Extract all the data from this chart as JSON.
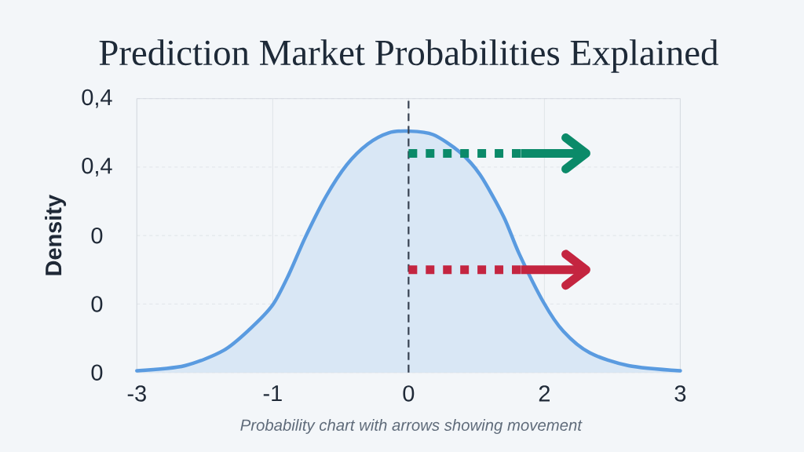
{
  "chart_data": {
    "type": "area",
    "title": "Prediction Market Probabilities Explained",
    "ylabel": "Density",
    "annotations": [
      "Probability chart with arrows showing movement"
    ],
    "xlim": [
      -3,
      3
    ],
    "xticks": [
      -3,
      {
        "value": -1.5,
        "label": "-1"
      },
      0,
      {
        "value": 1.5,
        "label": "2"
      },
      3
    ],
    "ylim": [
      0.12,
      0.44
    ],
    "yticks": [
      {
        "value": 0.12,
        "label": "0"
      },
      {
        "value": 0.2,
        "label": "0"
      },
      {
        "value": 0.28,
        "label": "0"
      },
      {
        "value": 0.36,
        "label": "0,4"
      },
      {
        "value": 0.44,
        "label": "0,4"
      }
    ],
    "grid": true,
    "series": [
      {
        "color": "#5a9be0",
        "x": [
          -3,
          -2.47,
          -2.04,
          -1.75,
          -1.5,
          -1.32,
          -1.14,
          -0.91,
          -0.68,
          -0.45,
          -0.22,
          0,
          0.27,
          0.56,
          0.79,
          1.05,
          1.22,
          1.49,
          1.71,
          2.0,
          2.43,
          3
        ],
        "values": [
          0.122,
          0.128,
          0.146,
          0.171,
          0.199,
          0.235,
          0.278,
          0.326,
          0.363,
          0.387,
          0.4,
          0.402,
          0.398,
          0.378,
          0.351,
          0.302,
          0.259,
          0.202,
          0.168,
          0.143,
          0.128,
          0.122
        ]
      },
      {
        "type": "line",
        "color": "#0b8a69",
        "line_style": "dotted",
        "x": [
          0,
          1.24
        ],
        "values": [
          0.376,
          0.376
        ]
      },
      {
        "type": "line",
        "color": "#0b8a69",
        "x": [
          1.24,
          1.96
        ],
        "values": [
          0.376,
          0.376
        ]
      },
      {
        "type": "line",
        "color": "#c42540",
        "line_style": "dotted",
        "x": [
          0,
          1.24
        ],
        "values": [
          0.24,
          0.24
        ]
      },
      {
        "type": "line",
        "color": "#c42540",
        "x": [
          1.24,
          1.96
        ],
        "values": [
          0.24,
          0.24
        ]
      }
    ],
    "ref_lines": [
      {
        "axis": "x",
        "value": 0,
        "color": "#374151",
        "line_style": "dashed"
      }
    ]
  }
}
